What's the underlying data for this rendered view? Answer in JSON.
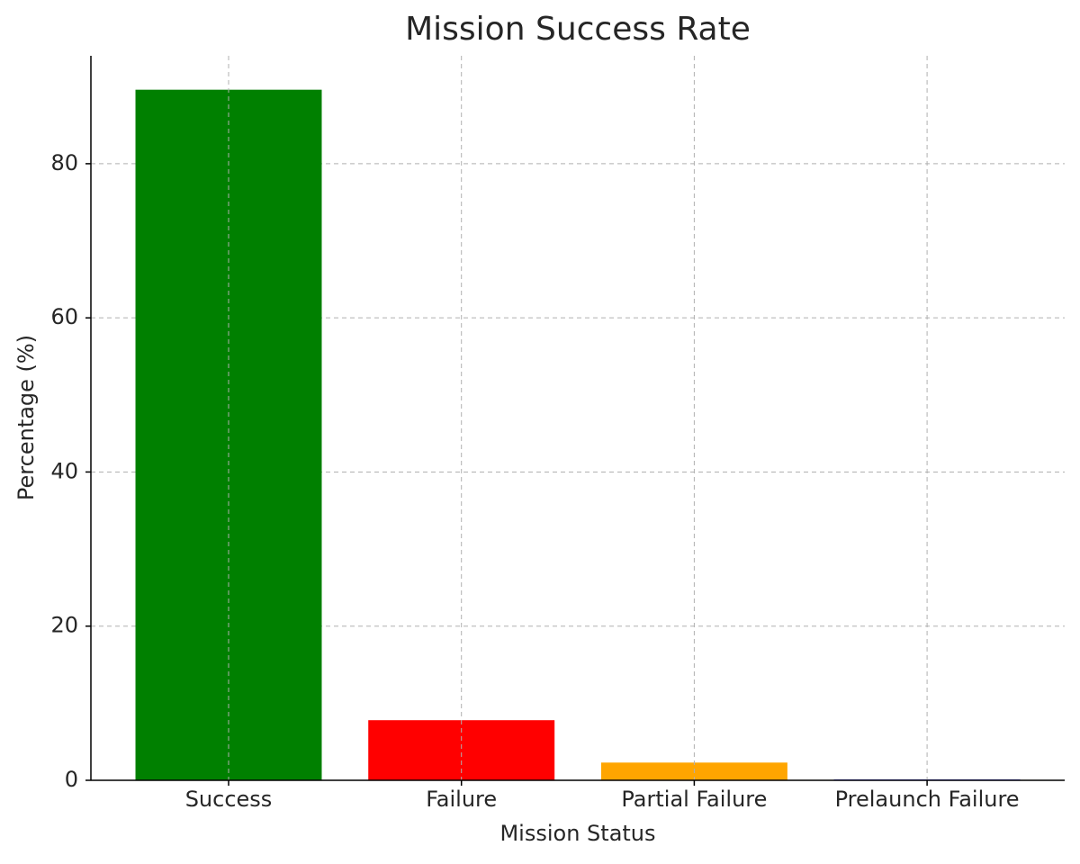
{
  "chart_data": {
    "type": "bar",
    "title": "Mission Success Rate",
    "x_label": "Mission Status",
    "y_label": "Percentage (%)",
    "categories": [
      "Success",
      "Failure",
      "Partial Failure",
      "Prelaunch Failure"
    ],
    "values": [
      89.6,
      7.8,
      2.3,
      0.1
    ],
    "colors": [
      "#008000",
      "#ff0000",
      "#ffa500",
      "#0000ff"
    ],
    "ylim": [
      0,
      94
    ],
    "yticks": [
      0,
      20,
      40,
      60,
      80
    ],
    "grid": true
  }
}
